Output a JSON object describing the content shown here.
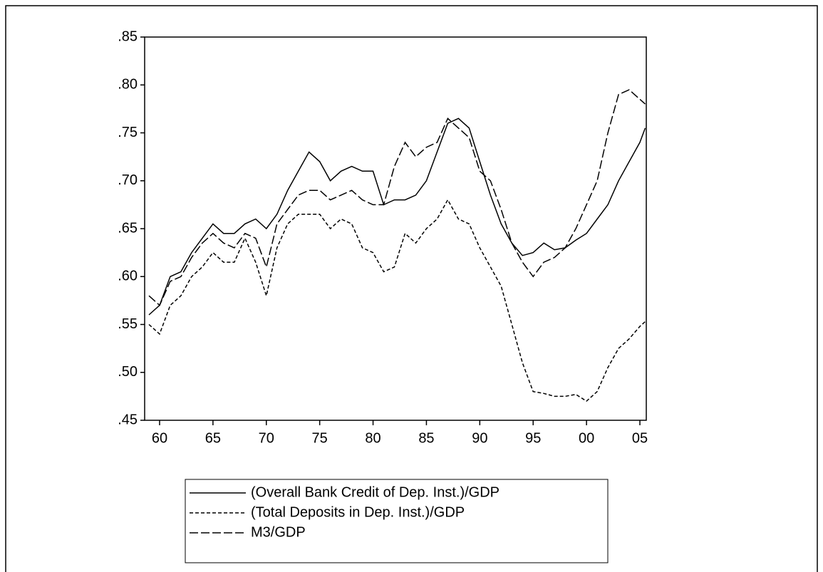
{
  "chart_data": {
    "type": "line",
    "x": [
      1959,
      1960,
      1961,
      1962,
      1963,
      1964,
      1965,
      1966,
      1967,
      1968,
      1969,
      1970,
      1971,
      1972,
      1973,
      1974,
      1975,
      1976,
      1977,
      1978,
      1979,
      1980,
      1981,
      1982,
      1983,
      1984,
      1985,
      1986,
      1987,
      1988,
      1989,
      1990,
      1991,
      1992,
      1993,
      1994,
      1995,
      1996,
      1997,
      1998,
      1999,
      2000,
      2001,
      2002,
      2003,
      2004,
      2005,
      2005.5
    ],
    "series": [
      {
        "name": "(Overall Bank Credit of Dep. Inst.)/GDP",
        "color": "#000000",
        "style": "solid",
        "values": [
          0.56,
          0.57,
          0.6,
          0.605,
          0.625,
          0.64,
          0.655,
          0.645,
          0.645,
          0.655,
          0.66,
          0.65,
          0.665,
          0.69,
          0.71,
          0.73,
          0.72,
          0.7,
          0.71,
          0.715,
          0.71,
          0.71,
          0.675,
          0.68,
          0.68,
          0.685,
          0.7,
          0.73,
          0.76,
          0.765,
          0.755,
          0.72,
          0.685,
          0.655,
          0.635,
          0.622,
          0.625,
          0.635,
          0.628,
          0.63,
          0.638,
          0.645,
          0.66,
          0.675,
          0.7,
          0.72,
          0.74,
          0.755
        ]
      },
      {
        "name": "(Total Deposits in Dep. Inst.)/GDP",
        "color": "#000000",
        "style": "dashed",
        "values": [
          0.55,
          0.54,
          0.57,
          0.58,
          0.6,
          0.61,
          0.625,
          0.615,
          0.615,
          0.64,
          0.615,
          0.58,
          0.63,
          0.655,
          0.665,
          0.665,
          0.665,
          0.65,
          0.66,
          0.655,
          0.63,
          0.625,
          0.605,
          0.61,
          0.645,
          0.635,
          0.65,
          0.66,
          0.68,
          0.66,
          0.655,
          0.63,
          0.61,
          0.59,
          0.55,
          0.51,
          0.48,
          0.478,
          0.475,
          0.475,
          0.477,
          0.47,
          0.48,
          0.505,
          0.525,
          0.535,
          0.548,
          0.553
        ]
      },
      {
        "name": "M3/GDP",
        "color": "#000000",
        "style": "long-dash",
        "values": [
          0.58,
          0.57,
          0.595,
          0.6,
          0.62,
          0.635,
          0.645,
          0.635,
          0.63,
          0.645,
          0.64,
          0.61,
          0.655,
          0.67,
          0.685,
          0.69,
          0.69,
          0.68,
          0.685,
          0.69,
          0.68,
          0.675,
          0.675,
          0.715,
          0.74,
          0.725,
          0.735,
          0.74,
          0.765,
          0.755,
          0.745,
          0.71,
          0.7,
          0.67,
          0.635,
          0.615,
          0.6,
          0.615,
          0.62,
          0.63,
          0.65,
          0.675,
          0.7,
          0.75,
          0.79,
          0.795,
          0.785,
          0.78
        ]
      }
    ],
    "xlim": [
      1958.6,
      2005.6
    ],
    "xticks": [
      {
        "value": 1960,
        "label": "60"
      },
      {
        "value": 1965,
        "label": "65"
      },
      {
        "value": 1970,
        "label": "70"
      },
      {
        "value": 1975,
        "label": "75"
      },
      {
        "value": 1980,
        "label": "80"
      },
      {
        "value": 1985,
        "label": "85"
      },
      {
        "value": 1990,
        "label": "90"
      },
      {
        "value": 1995,
        "label": "95"
      },
      {
        "value": 2000,
        "label": "00"
      },
      {
        "value": 2005,
        "label": "05"
      }
    ],
    "ylim": [
      0.45,
      0.85
    ],
    "yticks": [
      {
        "value": 0.45,
        "label": ".45"
      },
      {
        "value": 0.5,
        "label": ".50"
      },
      {
        "value": 0.55,
        "label": ".55"
      },
      {
        "value": 0.6,
        "label": ".60"
      },
      {
        "value": 0.65,
        "label": ".65"
      },
      {
        "value": 0.7,
        "label": ".70"
      },
      {
        "value": 0.75,
        "label": ".75"
      },
      {
        "value": 0.8,
        "label": ".80"
      },
      {
        "value": 0.85,
        "label": ".85"
      }
    ]
  }
}
